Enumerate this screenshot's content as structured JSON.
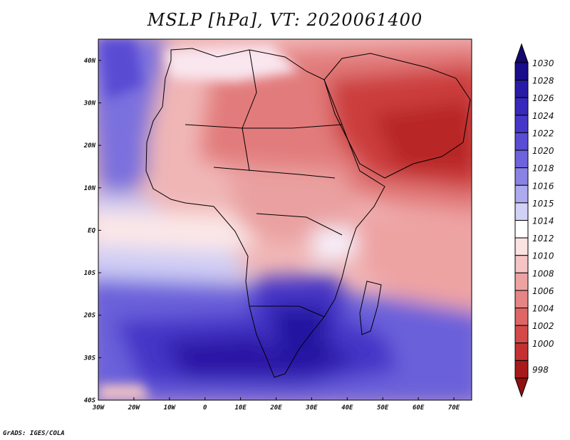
{
  "title": "MSLP [hPa], VT: 2020061400",
  "credit": "GrADS: IGES/COLA",
  "map": {
    "projection": "lat-lon",
    "lon_range": [
      -30,
      75
    ],
    "lat_range": [
      -40,
      45
    ],
    "lon_ticks": [
      {
        "lon": -30,
        "label": "30W"
      },
      {
        "lon": -20,
        "label": "20W"
      },
      {
        "lon": -10,
        "label": "10W"
      },
      {
        "lon": 0,
        "label": "0"
      },
      {
        "lon": 10,
        "label": "10E"
      },
      {
        "lon": 20,
        "label": "20E"
      },
      {
        "lon": 30,
        "label": "30E"
      },
      {
        "lon": 40,
        "label": "40E"
      },
      {
        "lon": 50,
        "label": "50E"
      },
      {
        "lon": 60,
        "label": "60E"
      },
      {
        "lon": 70,
        "label": "70E"
      }
    ],
    "lat_ticks": [
      {
        "lat": 40,
        "label": "40N"
      },
      {
        "lat": 30,
        "label": "30N"
      },
      {
        "lat": 20,
        "label": "20N"
      },
      {
        "lat": 10,
        "label": "10N"
      },
      {
        "lat": 0,
        "label": "EQ"
      },
      {
        "lat": -10,
        "label": "10S"
      },
      {
        "lat": -20,
        "label": "20S"
      },
      {
        "lat": -30,
        "label": "30S"
      },
      {
        "lat": -40,
        "label": "40S"
      }
    ]
  },
  "colorbar": {
    "levels": [
      {
        "label": "1030",
        "color": "#1a0d8a"
      },
      {
        "label": "1028",
        "color": "#2a1ba6"
      },
      {
        "label": "1026",
        "color": "#3828bb"
      },
      {
        "label": "1024",
        "color": "#4737c9"
      },
      {
        "label": "1022",
        "color": "#5a4cd3"
      },
      {
        "label": "1020",
        "color": "#6e63dc"
      },
      {
        "label": "1018",
        "color": "#8a83e4"
      },
      {
        "label": "1016",
        "color": "#aeaaee"
      },
      {
        "label": "1015",
        "color": "#d2d1f6"
      },
      {
        "label": "1014",
        "color": "#ffffff"
      },
      {
        "label": "1012",
        "color": "#fde2e2"
      },
      {
        "label": "1010",
        "color": "#f5c4c4"
      },
      {
        "label": "1008",
        "color": "#eea3a3"
      },
      {
        "label": "1006",
        "color": "#e68585"
      },
      {
        "label": "1004",
        "color": "#de6666"
      },
      {
        "label": "1002",
        "color": "#d44a4a"
      },
      {
        "label": "1000",
        "color": "#c43131"
      },
      {
        "label": "998",
        "color": "#a81a1a"
      }
    ],
    "top_arrow_color": "#14086e",
    "bottom_arrow_color": "#8e1010"
  }
}
